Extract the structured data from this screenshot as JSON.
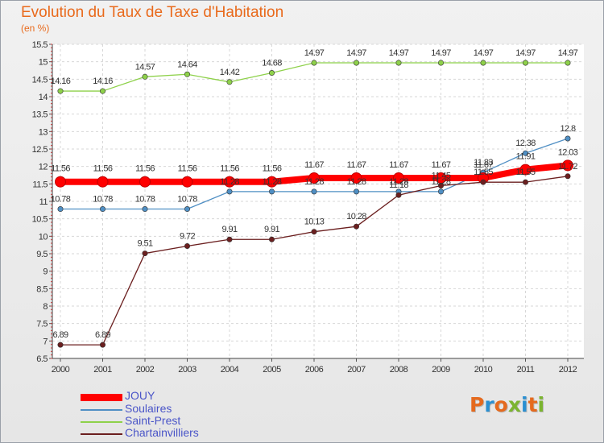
{
  "title": "Evolution du Taux de Taxe d'Habitation",
  "subtitle": "(en %)",
  "logo": {
    "text": "Proxiti",
    "colors": [
      "#e56a1e",
      "#2a8fd1",
      "#e56a1e",
      "#7bb42f",
      "#2a8fd1",
      "#e56a1e",
      "#7bb42f"
    ]
  },
  "chart_data": {
    "type": "line",
    "title": "Evolution du Taux de Taxe d'Habitation",
    "ylabel": "(en %)",
    "xlabel": "",
    "x": [
      "2000",
      "2001",
      "2002",
      "2003",
      "2004",
      "2005",
      "2006",
      "2007",
      "2008",
      "2009",
      "2010",
      "2011",
      "2012"
    ],
    "ylim": [
      6.5,
      15.5
    ],
    "yticks": [
      "6.5",
      "7",
      "7.5",
      "8",
      "8.5",
      "9",
      "9.5",
      "10",
      "10.5",
      "11",
      "11.5",
      "12",
      "12.5",
      "13",
      "13.5",
      "14",
      "14.5",
      "15",
      "15.5"
    ],
    "grid": true,
    "legend_position": "bottom-left",
    "series": [
      {
        "name": "JOUY",
        "color": "#ff0000",
        "line": "thick",
        "values": [
          11.56,
          11.56,
          11.56,
          11.56,
          11.56,
          11.56,
          11.67,
          11.67,
          11.67,
          11.67,
          11.67,
          11.91,
          12.03
        ],
        "labels": [
          "11.56",
          "11.56",
          "11.56",
          "11.56",
          "11.56",
          "11.56",
          "11.67",
          "11.67",
          "11.67",
          "11.67",
          "11.67",
          "11.91",
          "12.03"
        ]
      },
      {
        "name": "Soulaires",
        "color": "#4f8fc4",
        "line": "thin",
        "values": [
          10.78,
          10.78,
          10.78,
          10.78,
          11.28,
          11.28,
          11.28,
          11.28,
          11.28,
          11.28,
          11.83,
          12.38,
          12.8
        ],
        "labels": [
          "10.78",
          "10.78",
          "10.78",
          "10.78",
          "11.28",
          "11.28",
          "11.28",
          "11.28",
          "11.28",
          "11.28",
          "11.83",
          "12.38",
          "12.8"
        ]
      },
      {
        "name": "Saint-Prest",
        "color": "#8ed14a",
        "line": "thin",
        "values": [
          14.16,
          14.16,
          14.57,
          14.64,
          14.42,
          14.68,
          14.97,
          14.97,
          14.97,
          14.97,
          14.97,
          14.97,
          14.97
        ],
        "labels": [
          "14.16",
          "14.16",
          "14.57",
          "14.64",
          "14.42",
          "14.68",
          "14.97",
          "14.97",
          "14.97",
          "14.97",
          "14.97",
          "14.97",
          "14.97"
        ]
      },
      {
        "name": "Chartainvilliers",
        "color": "#6b1f1f",
        "line": "thin",
        "values": [
          6.89,
          6.89,
          9.51,
          9.72,
          9.91,
          9.91,
          10.13,
          10.28,
          11.18,
          11.45,
          11.55,
          11.55,
          11.72
        ],
        "labels": [
          "6.89",
          "6.89",
          "9.51",
          "9.72",
          "9.91",
          "9.91",
          "10.13",
          "10.28",
          "11.18",
          "11.45",
          "11.55",
          "11.55",
          "11.72"
        ]
      }
    ]
  }
}
